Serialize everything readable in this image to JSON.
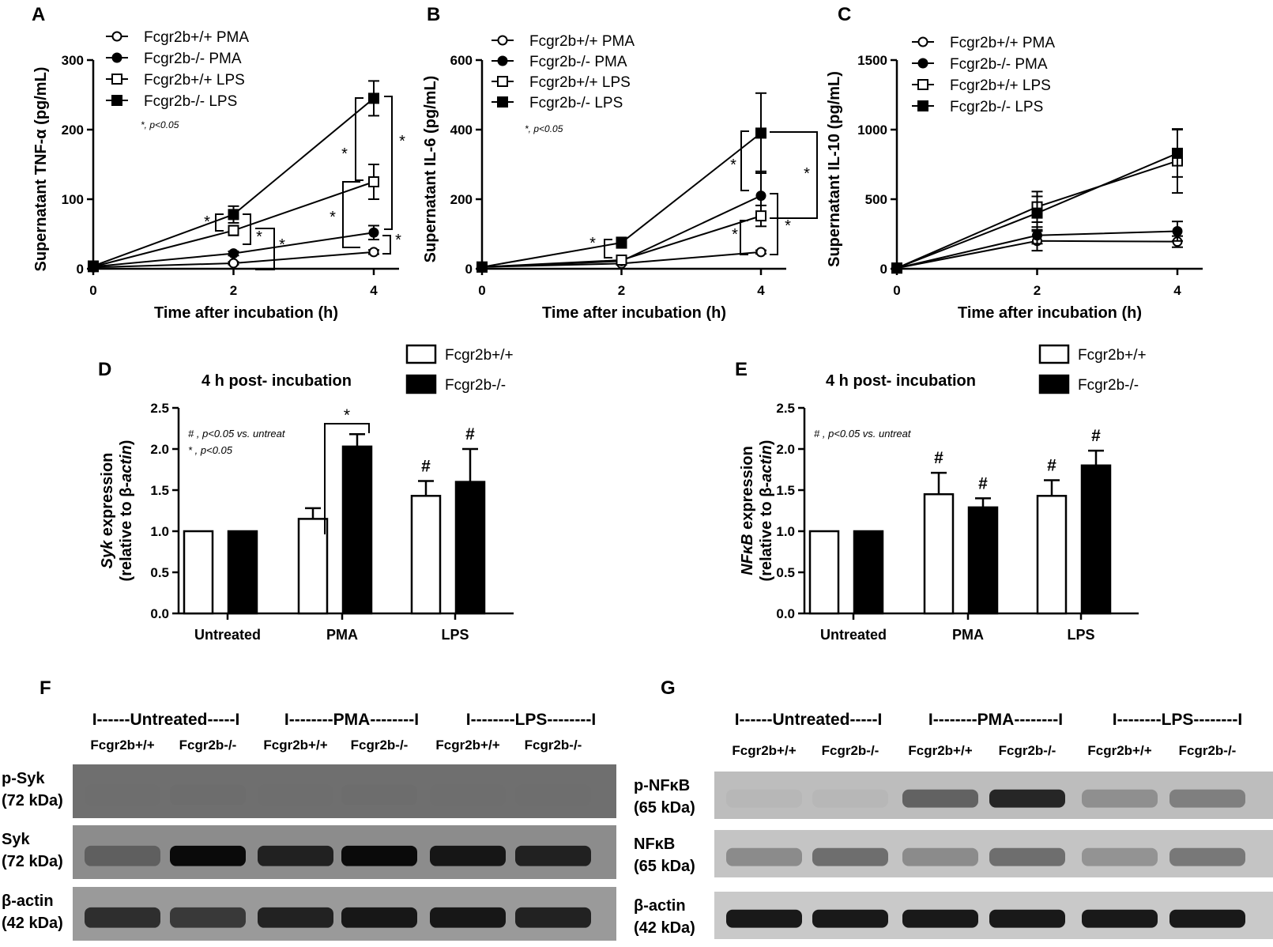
{
  "panel_labels": {
    "A": "A",
    "B": "B",
    "C": "C",
    "D": "D",
    "E": "E",
    "F": "F",
    "G": "G"
  },
  "chart_data": [
    {
      "panel": "A",
      "type": "line",
      "ylabel": "Supernatant TNF-α (pg/mL)",
      "xlabel": "Time after incubation (h)",
      "x": [
        0,
        2,
        4
      ],
      "xlim": [
        0,
        4
      ],
      "ylim": [
        0,
        300
      ],
      "yticks": [
        0,
        100,
        200,
        300
      ],
      "xticks": [
        0,
        2,
        4
      ],
      "legend": "top-left",
      "note": "*, p<0.05",
      "series": [
        {
          "name": "Fcgr2b+/+ PMA",
          "marker": "circle-open",
          "values": [
            2,
            8,
            24
          ],
          "err": [
            0,
            2,
            3
          ]
        },
        {
          "name": "Fcgr2b-/- PMA",
          "marker": "circle-filled",
          "values": [
            3,
            22,
            52
          ],
          "err": [
            0,
            3,
            10
          ]
        },
        {
          "name": "Fcgr2b+/+ LPS",
          "marker": "square-open",
          "values": [
            3,
            55,
            125
          ],
          "err": [
            0,
            7,
            25
          ]
        },
        {
          "name": "Fcgr2b-/- LPS",
          "marker": "square-filled",
          "values": [
            4,
            78,
            245
          ],
          "err": [
            0,
            12,
            25
          ]
        }
      ]
    },
    {
      "panel": "B",
      "type": "line",
      "ylabel": "Supernatant IL-6 (pg/mL)",
      "xlabel": "Time after incubation (h)",
      "x": [
        0,
        2,
        4
      ],
      "xlim": [
        0,
        4
      ],
      "ylim": [
        0,
        600
      ],
      "yticks": [
        0,
        200,
        400,
        600
      ],
      "xticks": [
        0,
        2,
        4
      ],
      "legend": "top-left",
      "note": "*, p<0.05",
      "series": [
        {
          "name": "Fcgr2b+/+ PMA",
          "marker": "circle-open",
          "values": [
            5,
            15,
            48
          ],
          "err": [
            0,
            3,
            5
          ]
        },
        {
          "name": "Fcgr2b-/- PMA",
          "marker": "circle-filled",
          "values": [
            5,
            22,
            210
          ],
          "err": [
            0,
            4,
            70
          ]
        },
        {
          "name": "Fcgr2b+/+ LPS",
          "marker": "square-open",
          "values": [
            5,
            25,
            152
          ],
          "err": [
            0,
            5,
            30
          ]
        },
        {
          "name": "Fcgr2b-/- LPS",
          "marker": "square-filled",
          "values": [
            5,
            75,
            390
          ],
          "err": [
            0,
            15,
            115
          ]
        }
      ]
    },
    {
      "panel": "C",
      "type": "line",
      "ylabel": "Supernatant IL-10 (pg/mL)",
      "xlabel": "Time after incubation (h)",
      "x": [
        0,
        2,
        4
      ],
      "xlim": [
        0,
        4
      ],
      "ylim": [
        0,
        1500
      ],
      "yticks": [
        0,
        500,
        1000,
        1500
      ],
      "xticks": [
        0,
        2,
        4
      ],
      "legend": "top-left",
      "series": [
        {
          "name": "Fcgr2b+/+ PMA",
          "marker": "circle-open",
          "values": [
            5,
            200,
            195
          ],
          "err": [
            0,
            70,
            40
          ]
        },
        {
          "name": "Fcgr2b-/- PMA",
          "marker": "circle-filled",
          "values": [
            5,
            240,
            270
          ],
          "err": [
            0,
            60,
            70
          ]
        },
        {
          "name": "Fcgr2b+/+ LPS",
          "marker": "square-open",
          "values": [
            5,
            445,
            775
          ],
          "err": [
            0,
            110,
            230
          ]
        },
        {
          "name": "Fcgr2b-/- LPS",
          "marker": "square-filled",
          "values": [
            5,
            400,
            830
          ],
          "err": [
            0,
            120,
            170
          ]
        }
      ]
    },
    {
      "panel": "D",
      "type": "bar",
      "title": "4 h post- incubation",
      "ylabel_1": "Syk",
      "ylabel_1b": " expression",
      "ylabel_2": "(relative to β-",
      "ylabel_2b": "actin",
      "ylabel_2c": ")",
      "categories": [
        "Untreated",
        "PMA",
        "LPS"
      ],
      "ylim": [
        0,
        2.5
      ],
      "yticks": [
        "0.0",
        "0.5",
        "1.0",
        "1.5",
        "2.0",
        "2.5"
      ],
      "legend": "top-right",
      "note1": "# , p<0.05 vs. untreat",
      "note2": "* , p<0.05",
      "series": [
        {
          "name": "Fcgr2b+/+",
          "values": [
            1.0,
            1.15,
            1.43
          ],
          "err": [
            0,
            0.13,
            0.18
          ],
          "marks": [
            "",
            "",
            "#"
          ]
        },
        {
          "name": "Fcgr2b-/-",
          "values": [
            1.0,
            2.03,
            1.6
          ],
          "err": [
            0,
            0.15,
            0.4
          ],
          "marks": [
            "",
            "",
            "#"
          ]
        }
      ],
      "bracket_mark": "*"
    },
    {
      "panel": "E",
      "type": "bar",
      "title": "4 h post- incubation",
      "ylabel_1": "NFκB",
      "ylabel_1b": " expression",
      "ylabel_2": "(relative to β-",
      "ylabel_2b": "actin",
      "ylabel_2c": ")",
      "categories": [
        "Untreated",
        "PMA",
        "LPS"
      ],
      "ylim": [
        0,
        2.5
      ],
      "yticks": [
        "0.0",
        "0.5",
        "1.0",
        "1.5",
        "2.0",
        "2.5"
      ],
      "legend": "top-right",
      "note1": "# , p<0.05 vs. untreat",
      "series": [
        {
          "name": "Fcgr2b+/+",
          "values": [
            1.0,
            1.45,
            1.43
          ],
          "err": [
            0,
            0.26,
            0.19
          ],
          "marks": [
            "",
            "#",
            "#"
          ]
        },
        {
          "name": "Fcgr2b-/-",
          "values": [
            1.0,
            1.29,
            1.8
          ],
          "err": [
            0,
            0.11,
            0.18
          ],
          "marks": [
            "",
            "#",
            "#"
          ]
        }
      ]
    }
  ],
  "blots": {
    "F": {
      "groups": [
        "I------Untreated-----I",
        "I--------PMA--------I",
        "I--------LPS--------I"
      ],
      "lanes": [
        "Fcgr2b+/+",
        "Fcgr2b-/-",
        "Fcgr2b+/+",
        "Fcgr2b-/-",
        "Fcgr2b+/+",
        "Fcgr2b-/-"
      ],
      "rows": [
        {
          "label1": "p-Syk",
          "label2": "(72 kDa)",
          "bg": "#6f6f6f",
          "intensity": [
            0.1,
            0.15,
            0.1,
            0.15,
            0.1,
            0.12
          ]
        },
        {
          "label1": "Syk",
          "label2": "(72 kDa)",
          "bg": "#8c8c8c",
          "intensity": [
            0.55,
            1.0,
            0.9,
            1.0,
            0.95,
            0.9
          ]
        },
        {
          "label1": "β-actin",
          "label2": "(42 kDa)",
          "bg": "#9a9a9a",
          "intensity": [
            0.85,
            0.8,
            0.9,
            0.95,
            0.95,
            0.9
          ]
        }
      ]
    },
    "G": {
      "groups": [
        "I------Untreated-----I",
        "I--------PMA--------I",
        "I--------LPS--------I"
      ],
      "lanes": [
        "Fcgr2b+/+",
        "Fcgr2b-/-",
        "Fcgr2b+/+",
        "Fcgr2b-/-",
        "Fcgr2b+/+",
        "Fcgr2b-/-"
      ],
      "rows": [
        {
          "label1": "p-NFκB",
          "label2": "(65 kDa)",
          "bg": "#bdbdbd",
          "intensity": [
            0.05,
            0.08,
            0.65,
            0.9,
            0.4,
            0.5
          ]
        },
        {
          "label1": "NFκB",
          "label2": "(65 kDa)",
          "bg": "#c4c4c4",
          "intensity": [
            0.45,
            0.6,
            0.45,
            0.6,
            0.4,
            0.55
          ]
        },
        {
          "label1": "β-actin",
          "label2": "(42 kDa)",
          "bg": "#c9c9c9",
          "intensity": [
            0.95,
            0.95,
            0.95,
            0.95,
            0.95,
            0.95
          ]
        }
      ]
    }
  }
}
